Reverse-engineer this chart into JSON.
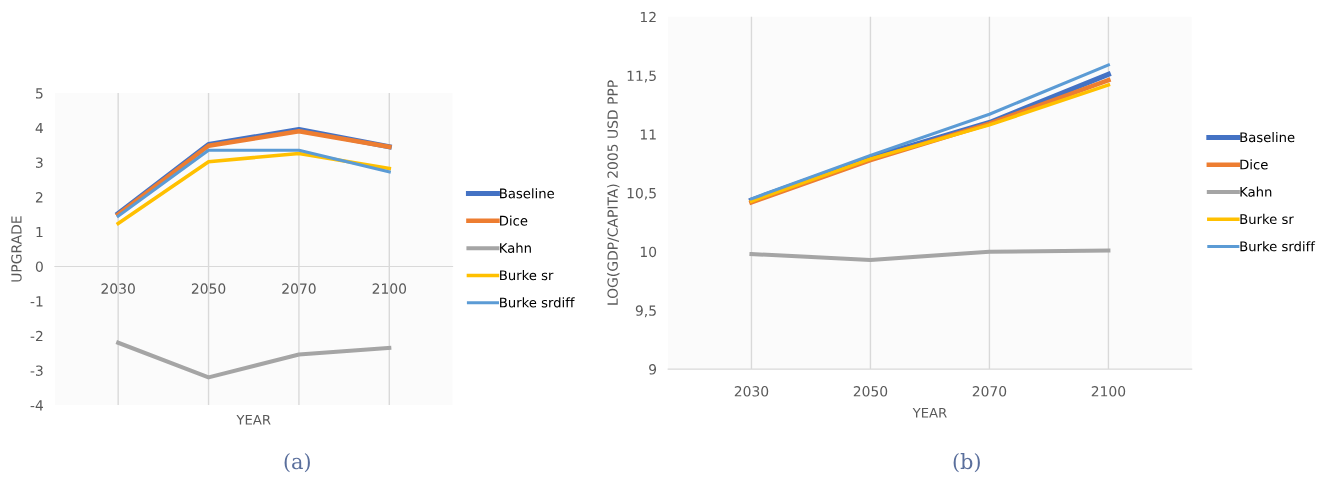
{
  "chart_data": [
    {
      "type": "line",
      "xlabel": "YEAR",
      "ylabel": "UPGRADE",
      "categories": [
        "2030",
        "2050",
        "2070",
        "2100"
      ],
      "series": [
        {
          "name": "Baseline",
          "color": "#4472c4",
          "values": [
            1.53,
            3.52,
            3.95,
            3.45
          ]
        },
        {
          "name": "Dice",
          "color": "#ed7d31",
          "values": [
            1.5,
            3.48,
            3.9,
            3.45
          ]
        },
        {
          "name": "Kahn",
          "color": "#a5a5a5",
          "values": [
            -2.2,
            -3.2,
            -2.54,
            -2.35
          ]
        },
        {
          "name": "Burke sr",
          "color": "#ffc000",
          "values": [
            1.24,
            3.02,
            3.26,
            2.83
          ]
        },
        {
          "name": "Burke srdiff",
          "color": "#5b9bd5",
          "values": [
            1.45,
            3.35,
            3.35,
            2.73
          ]
        }
      ],
      "ylim": [
        -4,
        5
      ],
      "yticks": [
        -4,
        -3,
        -2,
        -1,
        0,
        1,
        2,
        3,
        4,
        5
      ],
      "grid": "x",
      "legend": "right",
      "line_style": "solid",
      "marker": "none",
      "annotations": [
        "(a)"
      ]
    },
    {
      "type": "line",
      "xlabel": "YEAR",
      "ylabel": "LOG(GDP/CAPITA) 2005 USD PPP",
      "categories": [
        "2030",
        "2050",
        "2070",
        "2100"
      ],
      "series": [
        {
          "name": "Baseline",
          "color": "#4472c4",
          "values": [
            10.44,
            10.8,
            11.1,
            11.51
          ]
        },
        {
          "name": "Dice",
          "color": "#ed7d31",
          "values": [
            10.42,
            10.78,
            11.09,
            11.46
          ]
        },
        {
          "name": "Kahn",
          "color": "#a5a5a5",
          "values": [
            9.98,
            9.93,
            10.0,
            10.01
          ]
        },
        {
          "name": "Burke sr",
          "color": "#ffc000",
          "values": [
            10.43,
            10.79,
            11.08,
            11.42
          ]
        },
        {
          "name": "Burke srdiff",
          "color": "#5b9bd5",
          "values": [
            10.45,
            10.82,
            11.17,
            11.59
          ]
        }
      ],
      "ylim": [
        9,
        12
      ],
      "yticks": [
        9,
        {
          "value": 9.5,
          "label": "9,5"
        },
        10,
        {
          "value": 10.5,
          "label": "10,5"
        },
        11,
        {
          "value": 11.5,
          "label": "11,5"
        },
        12
      ],
      "grid": "x",
      "legend": "right",
      "line_style": "solid",
      "marker": "none",
      "annotations": [
        "(b)"
      ]
    }
  ]
}
